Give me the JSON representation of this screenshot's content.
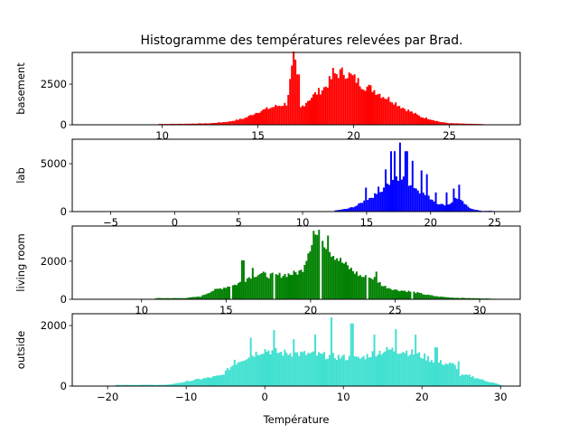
{
  "chart_data": {
    "type": "bar",
    "title": "Histogramme des températures relevées par Brad.",
    "xlabel": "Température",
    "grid": false,
    "legend": null,
    "subplots": [
      {
        "name": "basement",
        "ylabel": "basement",
        "color": "#ff0000",
        "xlim": [
          5.3,
          28.7
        ],
        "ylim": [
          0,
          4450
        ],
        "xticks": [
          10,
          15,
          20,
          25
        ],
        "yticks": [
          0,
          2500
        ],
        "profile": [
          [
            9.8,
            50
          ],
          [
            11,
            60
          ],
          [
            12.5,
            90
          ],
          [
            13.5,
            200
          ],
          [
            14.3,
            400
          ],
          [
            15,
            800
          ],
          [
            15.8,
            1100
          ],
          [
            16.5,
            1300
          ],
          [
            16.9,
            4300
          ],
          [
            17.2,
            1000
          ],
          [
            17.6,
            1500
          ],
          [
            18,
            1900
          ],
          [
            18.5,
            2300
          ],
          [
            19,
            3100
          ],
          [
            19.5,
            3250
          ],
          [
            20,
            2900
          ],
          [
            20.5,
            2400
          ],
          [
            21,
            2200
          ],
          [
            21.5,
            1800
          ],
          [
            22,
            1500
          ],
          [
            22.5,
            1100
          ],
          [
            23,
            800
          ],
          [
            23.5,
            500
          ],
          [
            24,
            350
          ],
          [
            24.5,
            180
          ],
          [
            25,
            100
          ],
          [
            26,
            60
          ],
          [
            26.8,
            40
          ]
        ],
        "spikes": [
          [
            16.9,
            4300
          ],
          [
            17.1,
            3100
          ],
          [
            18.9,
            3500
          ],
          [
            19.3,
            3400
          ],
          [
            20.8,
            2400
          ]
        ]
      },
      {
        "name": "lab",
        "ylabel": "lab",
        "color": "#0000ff",
        "xlim": [
          -8,
          27
        ],
        "ylim": [
          0,
          7550
        ],
        "xticks": [
          -5,
          0,
          5,
          10,
          15,
          20,
          25
        ],
        "yticks": [
          0,
          5000
        ],
        "profile": [
          [
            12.5,
            100
          ],
          [
            13.5,
            300
          ],
          [
            14.2,
            600
          ],
          [
            14.8,
            1100
          ],
          [
            15.5,
            1600
          ],
          [
            16,
            2000
          ],
          [
            16.5,
            2600
          ],
          [
            17,
            3200
          ],
          [
            17.5,
            3500
          ],
          [
            18,
            3300
          ],
          [
            18.5,
            2700
          ],
          [
            19,
            2300
          ],
          [
            19.5,
            1800
          ],
          [
            20,
            1400
          ],
          [
            20.5,
            900
          ],
          [
            21,
            700
          ],
          [
            21.5,
            800
          ],
          [
            22,
            1500
          ],
          [
            22.5,
            1000
          ],
          [
            23,
            400
          ],
          [
            23.5,
            200
          ],
          [
            24,
            60
          ],
          [
            24.6,
            80
          ],
          [
            25.3,
            20
          ]
        ],
        "spikes": [
          [
            15,
            2500
          ],
          [
            15.9,
            2600
          ],
          [
            16.5,
            4400
          ],
          [
            16.9,
            6300
          ],
          [
            17.2,
            6300
          ],
          [
            17.6,
            7200
          ],
          [
            18.1,
            6300
          ],
          [
            18.6,
            5300
          ],
          [
            19.3,
            4300
          ],
          [
            19.7,
            3900
          ],
          [
            20.4,
            2000
          ],
          [
            21.3,
            2000
          ],
          [
            21.8,
            2400
          ],
          [
            22.2,
            2800
          ]
        ]
      },
      {
        "name": "living room",
        "ylabel": "living room",
        "color": "#008000",
        "xlim": [
          5.9,
          32.4
        ],
        "ylim": [
          0,
          3850
        ],
        "xticks": [
          10,
          15,
          20,
          25,
          30
        ],
        "yticks": [
          0,
          2000
        ],
        "profile": [
          [
            10.8,
            60
          ],
          [
            12.5,
            60
          ],
          [
            13.5,
            150
          ],
          [
            14.2,
            450
          ],
          [
            15,
            650
          ],
          [
            15.5,
            750
          ],
          [
            16,
            950
          ],
          [
            16.5,
            1250
          ],
          [
            17,
            1350
          ],
          [
            17.5,
            1250
          ],
          [
            18,
            1250
          ],
          [
            18.5,
            1300
          ],
          [
            19,
            1350
          ],
          [
            19.5,
            1500
          ],
          [
            20,
            2900
          ],
          [
            20.3,
            3400
          ],
          [
            20.7,
            3200
          ],
          [
            21.2,
            2500
          ],
          [
            21.8,
            2000
          ],
          [
            22.5,
            1500
          ],
          [
            23,
            1200
          ],
          [
            23.8,
            1100
          ],
          [
            24.3,
            700
          ],
          [
            25,
            500
          ],
          [
            26,
            400
          ],
          [
            26.8,
            250
          ],
          [
            27.5,
            150
          ],
          [
            28.5,
            80
          ],
          [
            30.5,
            40
          ],
          [
            30.9,
            30
          ]
        ],
        "spikes": [
          [
            16,
            2050
          ],
          [
            16.6,
            1650
          ],
          [
            20.2,
            3600
          ],
          [
            21,
            3350
          ],
          [
            23.9,
            1450
          ]
        ],
        "gaps": [
          15.3,
          17.9,
          20.6,
          23.4,
          26.0
        ]
      },
      {
        "name": "outside",
        "ylabel": "outside",
        "color": "#40e0d0",
        "xlim": [
          -24.5,
          32.5
        ],
        "ylim": [
          0,
          2390
        ],
        "xticks": [
          -20,
          -10,
          0,
          10,
          20,
          30
        ],
        "yticks": [
          0,
          2000
        ],
        "profile": [
          [
            -19,
            40
          ],
          [
            -14.5,
            40
          ],
          [
            -12.5,
            40
          ],
          [
            -11,
            100
          ],
          [
            -9,
            200
          ],
          [
            -7,
            280
          ],
          [
            -5.5,
            350
          ],
          [
            -4.5,
            600
          ],
          [
            -3.5,
            800
          ],
          [
            -2,
            1000
          ],
          [
            -1,
            1100
          ],
          [
            0,
            1200
          ],
          [
            2,
            1100
          ],
          [
            4,
            1080
          ],
          [
            6,
            1050
          ],
          [
            8,
            1000
          ],
          [
            10,
            950
          ],
          [
            12,
            900
          ],
          [
            14,
            1100
          ],
          [
            16,
            1200
          ],
          [
            18,
            1150
          ],
          [
            20,
            1000
          ],
          [
            22,
            800
          ],
          [
            24,
            700
          ],
          [
            24.6,
            600
          ],
          [
            24.8,
            350
          ],
          [
            26,
            350
          ],
          [
            28,
            180
          ],
          [
            29.5,
            80
          ],
          [
            30.2,
            20
          ]
        ],
        "spikes": [
          [
            -3.8,
            870
          ],
          [
            -1.8,
            1600
          ],
          [
            1.1,
            1850
          ],
          [
            3.6,
            1550
          ],
          [
            6.4,
            1700
          ],
          [
            8.5,
            2270
          ],
          [
            11.1,
            2070
          ],
          [
            14,
            1700
          ],
          [
            16.7,
            1880
          ],
          [
            19.2,
            1700
          ],
          [
            21.8,
            1280
          ],
          [
            24.7,
            820
          ]
        ]
      }
    ]
  },
  "figure": {
    "title": "Histogramme des températures relevées par Brad.",
    "xlabel": "Température"
  }
}
